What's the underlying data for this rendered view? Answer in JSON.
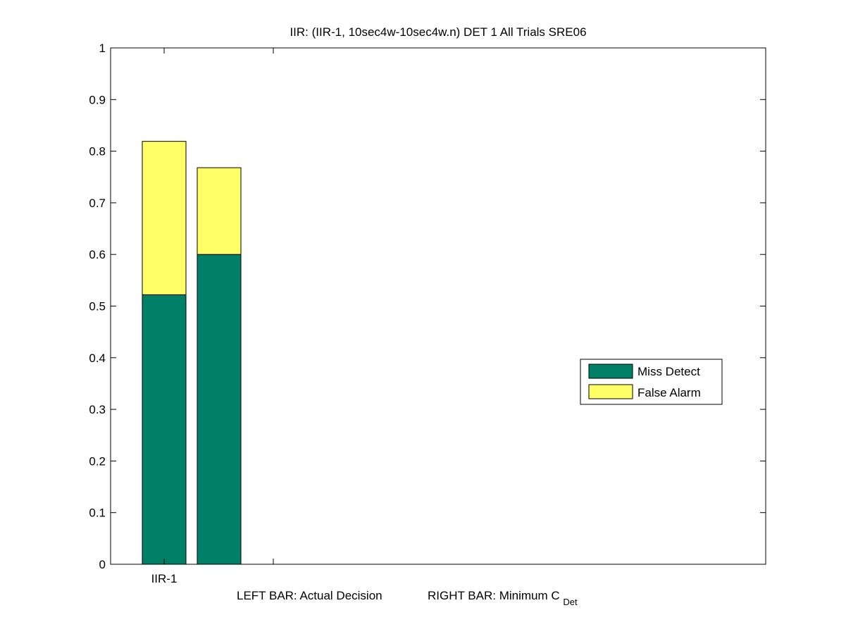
{
  "chart_data": {
    "type": "bar",
    "stacked": true,
    "title": "IIR: (IIR-1, 10sec4w-10sec4w.n) DET 1 All Trials SRE06",
    "xlabel": {
      "left_text": "LEFT BAR: Actual Decision",
      "right_text": "RIGHT BAR: Minimum C",
      "right_subscript": "Det"
    },
    "ylabel": "",
    "ylim": [
      0,
      1
    ],
    "yticks": [
      "0",
      "0.1",
      "0.2",
      "0.3",
      "0.4",
      "0.5",
      "0.6",
      "0.7",
      "0.8",
      "0.9",
      "1"
    ],
    "categories": [
      "IIR-1"
    ],
    "bars": [
      {
        "label": "Actual Decision",
        "miss_detect": 0.522,
        "false_alarm": 0.297
      },
      {
        "label": "Minimum C_Det",
        "miss_detect": 0.6,
        "false_alarm": 0.168
      }
    ],
    "series": [
      {
        "name": "Miss Detect",
        "color": "#008066"
      },
      {
        "name": "False Alarm",
        "color": "#ffff66"
      }
    ],
    "legend_position": "right",
    "grid": false
  }
}
